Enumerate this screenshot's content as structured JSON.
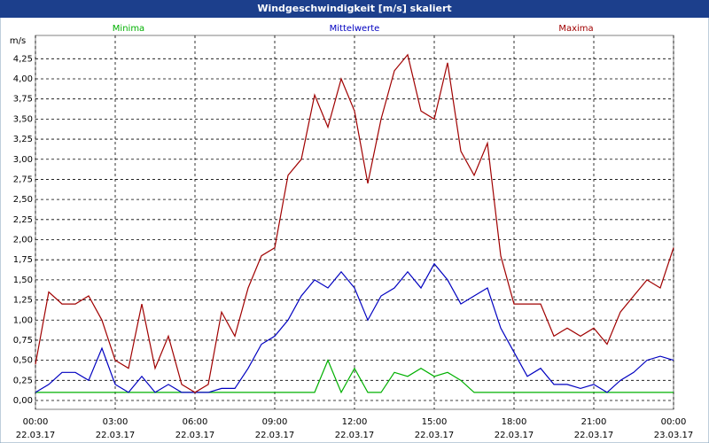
{
  "chart_data": {
    "type": "line",
    "title": "Windgeschwindigkeit [m/s] skaliert",
    "ylabel": "m/s",
    "x": [
      0,
      0.5,
      1,
      1.5,
      2,
      2.5,
      3,
      3.5,
      4,
      4.5,
      5,
      5.5,
      6,
      6.5,
      7,
      7.5,
      8,
      8.5,
      9,
      9.5,
      10,
      10.5,
      11,
      11.5,
      12,
      12.5,
      13,
      13.5,
      14,
      14.5,
      15,
      15.5,
      16,
      16.5,
      17,
      17.5,
      18,
      18.5,
      19,
      19.5,
      20,
      20.5,
      21,
      21.5,
      22,
      22.5,
      23,
      23.5,
      24
    ],
    "xlim": [
      0,
      24
    ],
    "xticks": [
      {
        "value": 0,
        "label": "00:00"
      },
      {
        "value": 3,
        "label": "03:00"
      },
      {
        "value": 6,
        "label": "06:00"
      },
      {
        "value": 9,
        "label": "09:00"
      },
      {
        "value": 12,
        "label": "12:00"
      },
      {
        "value": 15,
        "label": "15:00"
      },
      {
        "value": 18,
        "label": "18:00"
      },
      {
        "value": 21,
        "label": "21:00"
      },
      {
        "value": 24,
        "label": "00:00"
      }
    ],
    "xtick_dates": [
      "22.03.17",
      "22.03.17",
      "22.03.17",
      "22.03.17",
      "22.03.17",
      "22.03.17",
      "22.03.17",
      "22.03.17",
      "23.03.17"
    ],
    "ylim": [
      -0.11,
      4.54
    ],
    "yticks": [
      {
        "value": 0,
        "label": "0,00"
      },
      {
        "value": 0.25,
        "label": "0,25"
      },
      {
        "value": 0.5,
        "label": "0,50"
      },
      {
        "value": 0.75,
        "label": "0,75"
      },
      {
        "value": 1,
        "label": "1,00"
      },
      {
        "value": 1.25,
        "label": "1,25"
      },
      {
        "value": 1.5,
        "label": "1,50"
      },
      {
        "value": 1.75,
        "label": "1,75"
      },
      {
        "value": 2,
        "label": "2,00"
      },
      {
        "value": 2.25,
        "label": "2,25"
      },
      {
        "value": 2.5,
        "label": "2,50"
      },
      {
        "value": 2.75,
        "label": "2,75"
      },
      {
        "value": 3,
        "label": "3,00"
      },
      {
        "value": 3.25,
        "label": "3,25"
      },
      {
        "value": 3.5,
        "label": "3,50"
      },
      {
        "value": 3.75,
        "label": "3,75"
      },
      {
        "value": 4,
        "label": "4,00"
      },
      {
        "value": 4.25,
        "label": "4,25"
      }
    ],
    "grid": true,
    "series": [
      {
        "name": "Minima",
        "color": "#00b000",
        "values": [
          0.1,
          0.1,
          0.1,
          0.1,
          0.1,
          0.1,
          0.1,
          0.1,
          0.1,
          0.1,
          0.1,
          0.1,
          0.1,
          0.1,
          0.1,
          0.1,
          0.1,
          0.1,
          0.1,
          0.1,
          0.1,
          0.1,
          0.5,
          0.1,
          0.4,
          0.1,
          0.1,
          0.35,
          0.3,
          0.4,
          0.3,
          0.35,
          0.25,
          0.1,
          0.1,
          0.1,
          0.1,
          0.1,
          0.1,
          0.1,
          0.1,
          0.1,
          0.1,
          0.1,
          0.1,
          0.1,
          0.1,
          0.1,
          0.1
        ]
      },
      {
        "name": "Mittelwerte",
        "color": "#0000c0",
        "values": [
          0.1,
          0.2,
          0.35,
          0.35,
          0.25,
          0.65,
          0.2,
          0.1,
          0.3,
          0.1,
          0.2,
          0.1,
          0.1,
          0.1,
          0.15,
          0.15,
          0.4,
          0.7,
          0.8,
          1.0,
          1.3,
          1.5,
          1.4,
          1.6,
          1.4,
          1.0,
          1.3,
          1.4,
          1.6,
          1.4,
          1.7,
          1.5,
          1.2,
          1.3,
          1.4,
          0.9,
          0.6,
          0.3,
          0.4,
          0.2,
          0.2,
          0.15,
          0.2,
          0.1,
          0.25,
          0.35,
          0.5,
          0.55,
          0.5
        ]
      },
      {
        "name": "Maxima",
        "color": "#a00000",
        "values": [
          0.45,
          1.35,
          1.2,
          1.2,
          1.3,
          1.0,
          0.5,
          0.4,
          1.2,
          0.4,
          0.8,
          0.2,
          0.1,
          0.2,
          1.1,
          0.8,
          1.4,
          1.8,
          1.9,
          2.8,
          3.0,
          3.8,
          3.4,
          4.0,
          3.6,
          2.7,
          3.5,
          4.1,
          4.3,
          3.6,
          3.5,
          4.2,
          3.1,
          2.8,
          3.2,
          1.8,
          1.2,
          1.2,
          1.2,
          0.8,
          0.9,
          0.8,
          0.9,
          0.7,
          1.1,
          1.3,
          1.5,
          1.4,
          1.9
        ]
      }
    ]
  }
}
